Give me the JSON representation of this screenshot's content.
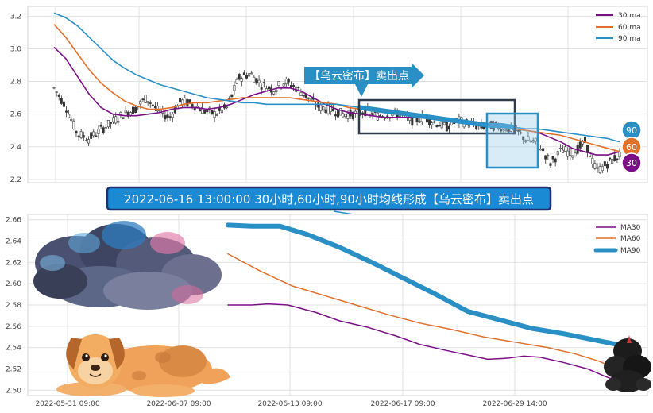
{
  "chart_data": [
    {
      "type": "candlestick",
      "yticks": [
        2.2,
        2.4,
        2.6,
        2.8,
        3.0,
        3.2
      ],
      "ylim": [
        2.18,
        3.26
      ],
      "legend": [
        "30 ma",
        "60 ma",
        "90 ma"
      ],
      "legend_position": "top-right",
      "grid": true,
      "series": [
        {
          "name": "30 ma",
          "color": "#7a0f86",
          "values": [
            3.01,
            2.94,
            2.83,
            2.72,
            2.64,
            2.6,
            2.59,
            2.59,
            2.6,
            2.61,
            2.63,
            2.64,
            2.64,
            2.63,
            2.64,
            2.66,
            2.69,
            2.72,
            2.74,
            2.76,
            2.76,
            2.74,
            2.7,
            2.66,
            2.63,
            2.61,
            2.6,
            2.59,
            2.58,
            2.58,
            2.58,
            2.58,
            2.57,
            2.57,
            2.56,
            2.55,
            2.55,
            2.54,
            2.52,
            2.51,
            2.5,
            2.49,
            2.46,
            2.43,
            2.39,
            2.37,
            2.35,
            2.35,
            2.37
          ]
        },
        {
          "name": "60 ma",
          "color": "#e0702a",
          "values": [
            3.15,
            3.07,
            2.97,
            2.87,
            2.79,
            2.73,
            2.68,
            2.65,
            2.63,
            2.63,
            2.64,
            2.66,
            2.67,
            2.67,
            2.68,
            2.69,
            2.7,
            2.7,
            2.7,
            2.7,
            2.7,
            2.69,
            2.68,
            2.67,
            2.66,
            2.64,
            2.63,
            2.62,
            2.61,
            2.6,
            2.59,
            2.58,
            2.57,
            2.56,
            2.55,
            2.55,
            2.54,
            2.53,
            2.52,
            2.51,
            2.5,
            2.49,
            2.48,
            2.47,
            2.45,
            2.43,
            2.41,
            2.39,
            2.37
          ]
        },
        {
          "name": "90 ma",
          "color": "#2a8fc4",
          "values": [
            3.22,
            3.19,
            3.14,
            3.07,
            3.0,
            2.93,
            2.88,
            2.84,
            2.81,
            2.78,
            2.76,
            2.74,
            2.72,
            2.7,
            2.69,
            2.68,
            2.67,
            2.67,
            2.66,
            2.66,
            2.66,
            2.66,
            2.66,
            2.66,
            2.66,
            2.65,
            2.64,
            2.63,
            2.62,
            2.61,
            2.6,
            2.59,
            2.58,
            2.57,
            2.56,
            2.55,
            2.54,
            2.53,
            2.53,
            2.52,
            2.51,
            2.51,
            2.5,
            2.49,
            2.48,
            2.47,
            2.46,
            2.45,
            2.43
          ]
        }
      ],
      "price_path": [
        2.76,
        2.65,
        2.48,
        2.45,
        2.5,
        2.55,
        2.6,
        2.63,
        2.7,
        2.62,
        2.58,
        2.68,
        2.66,
        2.62,
        2.6,
        2.64,
        2.82,
        2.85,
        2.78,
        2.75,
        2.8,
        2.76,
        2.7,
        2.64,
        2.63,
        2.6,
        2.6,
        2.62,
        2.59,
        2.6,
        2.6,
        2.56,
        2.58,
        2.55,
        2.52,
        2.56,
        2.54,
        2.52,
        2.53,
        2.52,
        2.5,
        2.44,
        2.42,
        2.3,
        2.38,
        2.36,
        2.43,
        2.25,
        2.3,
        2.35
      ],
      "end_labels": [
        "90",
        "60",
        "30"
      ],
      "annotation": "【乌云密布】卖出点"
    },
    {
      "type": "line",
      "x_ticks": [
        "2022-05-31 09:00",
        "2022-06-07 09:00",
        "2022-06-13 09:00",
        "2022-06-17 09:00",
        "2022-06-29 14:00"
      ],
      "yticks": [
        2.5,
        2.52,
        2.54,
        2.56,
        2.58,
        2.6,
        2.62,
        2.64,
        2.66
      ],
      "ylim": [
        2.495,
        2.665
      ],
      "legend": [
        "MA30",
        "MA60",
        "MA90"
      ],
      "legend_position": "top-right",
      "grid": true,
      "series": [
        {
          "name": "MA30",
          "color": "#7a0f86",
          "points": [
            [
              0,
              2.58
            ],
            [
              0.06,
              2.58
            ],
            [
              0.1,
              2.581
            ],
            [
              0.15,
              2.58
            ],
            [
              0.22,
              2.573
            ],
            [
              0.28,
              2.565
            ],
            [
              0.35,
              2.559
            ],
            [
              0.42,
              2.551
            ],
            [
              0.48,
              2.543
            ],
            [
              0.55,
              2.537
            ],
            [
              0.6,
              2.533
            ],
            [
              0.65,
              2.529
            ],
            [
              0.7,
              2.53
            ],
            [
              0.74,
              2.532
            ],
            [
              0.78,
              2.531
            ],
            [
              0.84,
              2.526
            ],
            [
              0.9,
              2.52
            ],
            [
              0.95,
              2.512
            ],
            [
              1.0,
              2.506
            ]
          ]
        },
        {
          "name": "MA60",
          "color": "#e0702a",
          "points": [
            [
              0,
              2.628
            ],
            [
              0.08,
              2.612
            ],
            [
              0.16,
              2.598
            ],
            [
              0.24,
              2.589
            ],
            [
              0.32,
              2.58
            ],
            [
              0.4,
              2.571
            ],
            [
              0.48,
              2.563
            ],
            [
              0.56,
              2.557
            ],
            [
              0.64,
              2.55
            ],
            [
              0.72,
              2.545
            ],
            [
              0.8,
              2.54
            ],
            [
              0.87,
              2.534
            ],
            [
              0.93,
              2.527
            ],
            [
              1.0,
              2.515
            ]
          ]
        },
        {
          "name": "MA90",
          "color": "#2a8fc4",
          "points": [
            [
              0,
              2.655
            ],
            [
              0.06,
              2.654
            ],
            [
              0.13,
              2.654
            ],
            [
              0.2,
              2.646
            ],
            [
              0.28,
              2.634
            ],
            [
              0.36,
              2.62
            ],
            [
              0.44,
              2.605
            ],
            [
              0.52,
              2.59
            ],
            [
              0.6,
              2.574
            ],
            [
              0.68,
              2.566
            ],
            [
              0.76,
              2.558
            ],
            [
              0.84,
              2.553
            ],
            [
              0.92,
              2.547
            ],
            [
              1.0,
              2.541
            ]
          ]
        }
      ]
    }
  ],
  "banner": {
    "text": "2022-06-16 13:00:00 30小时,60小时,90小时均线形成【乌云密布】卖出点"
  },
  "colors": {
    "ma30": "#7a0f86",
    "ma60": "#e0702a",
    "ma90": "#2a8fc4",
    "banner_bg": "#1a8ad4",
    "banner_border": "#22306e"
  },
  "icons": [
    "storm-cloud-icon",
    "dog-illustration-icon",
    "dark-cloud-icon"
  ]
}
